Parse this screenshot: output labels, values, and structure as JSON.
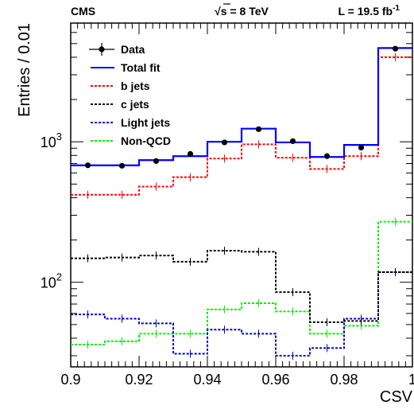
{
  "chart_data": {
    "type": "line",
    "header": {
      "left": "CMS",
      "center": "√s = 8 TeV",
      "right_main": "L = 19.5 fb",
      "right_sup": "-1"
    },
    "xlabel": "CSV",
    "ylabel": "Entries / 0.01",
    "xlim": [
      0.9,
      1.0
    ],
    "ylim": [
      25,
      7000
    ],
    "yscale": "log",
    "x_ticks": [
      {
        "v": 0.9,
        "label": "0.9"
      },
      {
        "v": 0.92,
        "label": "0.92"
      },
      {
        "v": 0.94,
        "label": "0.94"
      },
      {
        "v": 0.96,
        "label": "0.96"
      },
      {
        "v": 0.98,
        "label": "0.98"
      },
      {
        "v": 1.0,
        "label": "1"
      }
    ],
    "y_ticks": [
      {
        "v": 100,
        "base": "10",
        "exp": "2"
      },
      {
        "v": 1000,
        "base": "10",
        "exp": "3"
      }
    ],
    "bin_edges": [
      0.9,
      0.91,
      0.92,
      0.93,
      0.94,
      0.95,
      0.96,
      0.97,
      0.98,
      0.99,
      1.0
    ],
    "legend_position": "top-left",
    "series": [
      {
        "name": "Data",
        "kind": "points",
        "color": "#000000",
        "values": [
          680,
          675,
          730,
          820,
          990,
          1230,
          1010,
          790,
          910,
          4600
        ],
        "errors": [
          26,
          26,
          27,
          29,
          31,
          35,
          32,
          28,
          30,
          68
        ]
      },
      {
        "name": "Total fit",
        "kind": "step",
        "color": "#0000ff",
        "dash": "",
        "values": [
          680,
          680,
          740,
          790,
          1000,
          1240,
          990,
          780,
          950,
          4650
        ]
      },
      {
        "name": "b jets",
        "kind": "step",
        "color": "#ff0000",
        "dash": "3,2",
        "values": [
          420,
          420,
          480,
          560,
          760,
          960,
          770,
          640,
          790,
          4000
        ]
      },
      {
        "name": "c jets",
        "kind": "step",
        "color": "#000000",
        "dash": "3,2",
        "values": [
          148,
          150,
          155,
          140,
          168,
          165,
          85,
          52,
          53,
          118
        ]
      },
      {
        "name": "Light jets",
        "kind": "step",
        "color": "#0000cc",
        "dash": "3,2",
        "values": [
          59,
          55,
          51,
          31,
          46,
          43,
          30,
          34,
          55,
          118
        ]
      },
      {
        "name": "Non-QCD",
        "kind": "step",
        "color": "#00ee00",
        "dash": "3,2",
        "values": [
          36,
          38,
          43,
          43,
          64,
          71,
          62,
          43,
          49,
          270
        ]
      }
    ]
  }
}
